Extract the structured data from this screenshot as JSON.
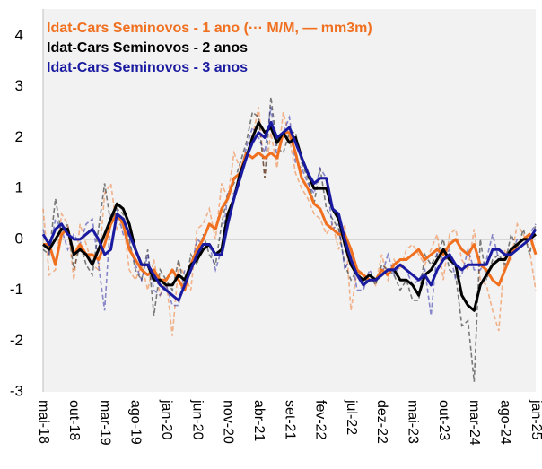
{
  "chart_data": {
    "type": "line",
    "categories": [
      "mai-18",
      null,
      null,
      null,
      null,
      "out-18",
      null,
      null,
      null,
      null,
      "mar-19",
      null,
      null,
      null,
      null,
      "ago-19",
      null,
      null,
      null,
      null,
      "jan-20",
      null,
      null,
      null,
      null,
      "jun-20",
      null,
      null,
      null,
      null,
      "nov-20",
      null,
      null,
      null,
      null,
      "abr-21",
      null,
      null,
      null,
      null,
      "set-21",
      null,
      null,
      null,
      null,
      "fev-22",
      null,
      null,
      null,
      null,
      "jul-22",
      null,
      null,
      null,
      null,
      "dez-22",
      null,
      null,
      null,
      null,
      "mai-23",
      null,
      null,
      null,
      null,
      "out-23",
      null,
      null,
      null,
      null,
      "mar-24",
      null,
      null,
      null,
      null,
      "ago-24",
      null,
      null,
      null,
      null,
      "jan-25"
    ],
    "series": [
      {
        "name": "Idat-Cars Seminovos - 1 ano (··· M/M, — mm3m)",
        "color": "#f07020",
        "values": [
          -0.1,
          -0.1,
          -0.5,
          0.1,
          0.2,
          -0.3,
          -0.1,
          -0.3,
          -0.3,
          -0.4,
          -0.1,
          0.3,
          0.5,
          0.3,
          -0.2,
          -0.4,
          -0.6,
          -0.7,
          -0.6,
          -0.8,
          -0.8,
          -0.6,
          -0.8,
          -1.0,
          -0.5,
          -0.2,
          0.0,
          0.3,
          0.2,
          0.6,
          0.8,
          1.2,
          1.3,
          1.7,
          1.6,
          1.7,
          1.6,
          1.7,
          1.6,
          2.1,
          2.1,
          1.7,
          1.2,
          1.0,
          0.7,
          0.6,
          0.3,
          0.2,
          0.1,
          0.1,
          -0.2,
          -0.6,
          -0.7,
          -0.8,
          -0.8,
          -0.6,
          -0.7,
          -0.5,
          -0.4,
          -0.4,
          -0.3,
          -0.2,
          -0.4,
          -0.3,
          -0.2,
          -0.3,
          -0.1,
          0.0,
          -0.2,
          -0.3,
          -0.1,
          -0.5,
          -0.6,
          -0.8,
          -0.9,
          -0.6,
          -0.3,
          -0.1,
          0.0,
          0.1,
          -0.3
        ],
        "monthly_values": [
          0.6,
          -0.7,
          -0.6,
          0.5,
          0.3,
          -0.8,
          0.3,
          -0.1,
          -0.5,
          -0.6,
          0.9,
          1.1,
          0.2,
          0.4,
          -0.6,
          -0.8,
          -0.5,
          -1.0,
          -0.4,
          -1.1,
          -0.8,
          -1.9,
          -0.5,
          -0.7,
          -1.0,
          0.2,
          0.3,
          0.6,
          0.0,
          1.1,
          0.8,
          1.7,
          1.4,
          1.6,
          2.0,
          2.6,
          1.2,
          2.1,
          1.4,
          2.5,
          2.0,
          1.3,
          1.0,
          0.8,
          0.5,
          0.4,
          0.1,
          0.3,
          -0.2,
          0.3,
          -1.4,
          -0.6,
          -0.8,
          -0.7,
          -0.9,
          -0.3,
          -0.8,
          -0.4,
          -0.6,
          -0.2,
          -0.1,
          -0.3,
          -0.5,
          -0.2,
          0.1,
          -0.8,
          0.1,
          0.2,
          -0.4,
          -0.6,
          0.2,
          -0.8,
          -0.9,
          -1.4,
          -1.8,
          -0.2,
          -0.4,
          0.3,
          0.1,
          -0.2,
          -1.0
        ]
      },
      {
        "name": "Idat-Cars Seminovos - 2 anos",
        "color": "#000000",
        "values": [
          -0.1,
          -0.2,
          0.0,
          0.2,
          0.2,
          -0.3,
          -0.2,
          -0.3,
          -0.5,
          -0.2,
          0.1,
          0.4,
          0.7,
          0.6,
          0.3,
          -0.2,
          -0.5,
          -0.5,
          -0.8,
          -0.8,
          -0.9,
          -0.9,
          -0.7,
          -0.8,
          -0.5,
          -0.4,
          -0.2,
          -0.1,
          -0.3,
          -0.2,
          0.5,
          0.8,
          1.3,
          1.6,
          2.0,
          2.3,
          2.1,
          2.2,
          1.9,
          2.1,
          1.9,
          2.0,
          1.6,
          1.3,
          1.0,
          1.0,
          1.0,
          0.6,
          0.4,
          -0.1,
          -0.5,
          -0.7,
          -0.8,
          -0.7,
          -0.8,
          -0.7,
          -0.6,
          -0.6,
          -0.8,
          -0.8,
          -0.9,
          -1.1,
          -0.7,
          -0.6,
          -0.4,
          -0.2,
          -0.4,
          -0.5,
          -1.1,
          -1.3,
          -1.4,
          -0.9,
          -0.7,
          -0.5,
          -0.4,
          -0.4,
          -0.2,
          -0.1,
          0.0,
          0.0,
          0.1
        ],
        "monthly_values": [
          -0.2,
          -0.3,
          0.8,
          0.1,
          0.3,
          -0.6,
          -0.1,
          -0.5,
          -0.7,
          0.2,
          1.1,
          0.3,
          0.6,
          0.5,
          0.0,
          -0.6,
          -0.8,
          -0.2,
          -1.5,
          -0.6,
          -0.8,
          -1.0,
          -0.4,
          -1.0,
          -0.3,
          -0.5,
          0.1,
          -0.3,
          -0.5,
          0.3,
          0.9,
          1.1,
          1.5,
          1.9,
          2.5,
          2.4,
          1.2,
          2.8,
          1.8,
          1.7,
          2.1,
          2.1,
          1.5,
          1.2,
          0.7,
          1.4,
          0.6,
          0.4,
          0.2,
          -0.5,
          -0.8,
          -0.6,
          -0.9,
          -0.7,
          -0.9,
          -0.5,
          -0.6,
          -0.7,
          -1.0,
          -0.8,
          -1.2,
          -1.2,
          -0.3,
          -0.5,
          -0.3,
          0.0,
          -0.6,
          -0.7,
          -1.7,
          -1.6,
          -2.8,
          0.0,
          -0.8,
          -0.4,
          -0.3,
          -0.5,
          0.1,
          -0.2,
          0.2,
          -0.3,
          0.3
        ]
      },
      {
        "name": "Idat-Cars Seminovos - 3 anos",
        "color": "#1a1aa0",
        "values": [
          0.1,
          -0.1,
          0.2,
          0.3,
          0.1,
          0.0,
          0.0,
          0.1,
          0.2,
          0.0,
          -0.3,
          -0.2,
          0.5,
          0.4,
          0.1,
          -0.2,
          -0.5,
          -0.5,
          -0.7,
          -0.9,
          -1.0,
          -1.1,
          -1.2,
          -0.9,
          -0.6,
          -0.3,
          -0.1,
          -0.1,
          -0.3,
          -0.3,
          0.3,
          0.8,
          1.2,
          1.6,
          1.9,
          2.1,
          2.0,
          2.3,
          2.0,
          2.1,
          2.2,
          1.9,
          1.6,
          1.3,
          1.1,
          1.2,
          1.2,
          0.6,
          0.5,
          0.0,
          -0.4,
          -0.7,
          -0.9,
          -0.8,
          -0.8,
          -0.7,
          -0.6,
          -0.6,
          -0.5,
          -0.6,
          -0.7,
          -0.8,
          -0.7,
          -0.9,
          -0.6,
          -0.4,
          -0.3,
          -0.5,
          -0.6,
          -0.5,
          -0.5,
          -0.5,
          -0.5,
          -0.2,
          -0.2,
          -0.3,
          -0.3,
          -0.2,
          -0.1,
          0.0,
          0.2
        ],
        "monthly_values": [
          0.2,
          -0.3,
          0.4,
          0.2,
          -0.2,
          0.1,
          -0.1,
          0.3,
          0.4,
          -0.5,
          -1.4,
          0.5,
          0.6,
          0.1,
          -0.1,
          -0.5,
          -0.8,
          -0.3,
          -1.0,
          -1.1,
          -0.9,
          -1.3,
          -1.3,
          -0.6,
          -0.6,
          0.0,
          -0.1,
          -0.1,
          -0.6,
          -0.2,
          0.9,
          0.9,
          1.3,
          1.8,
          2.2,
          2.0,
          1.7,
          2.6,
          1.6,
          2.1,
          2.4,
          1.5,
          1.4,
          1.1,
          0.9,
          1.4,
          1.2,
          0.2,
          0.3,
          -0.6,
          -0.3,
          -1.0,
          -1.0,
          -0.6,
          -0.8,
          -0.7,
          -0.3,
          -0.7,
          -0.5,
          -0.6,
          -0.9,
          -0.8,
          -0.6,
          -1.5,
          -0.2,
          -0.4,
          -0.2,
          -0.8,
          -0.7,
          -0.2,
          -0.6,
          -0.6,
          -0.4,
          0.1,
          -0.4,
          -0.3,
          -0.3,
          0.0,
          0.0,
          0.1,
          0.3
        ]
      }
    ],
    "ylim": [
      -3,
      4
    ],
    "yticks": [
      -3,
      -2,
      -1,
      0,
      1,
      2,
      3,
      4
    ]
  }
}
